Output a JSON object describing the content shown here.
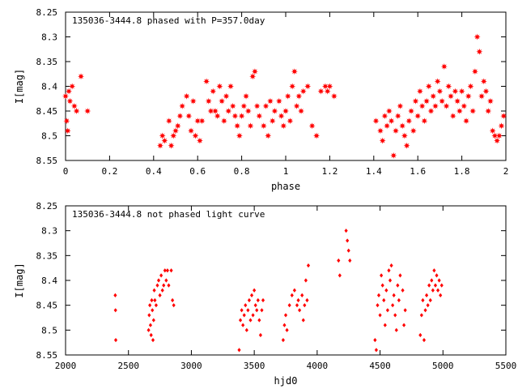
{
  "chart_data": [
    {
      "type": "scatter",
      "title": "135036-3444.8 phased with P=357.0day",
      "xlabel": "phase",
      "ylabel": "I[mag]",
      "xlim": [
        0,
        2
      ],
      "ylim": [
        8.25,
        8.55
      ],
      "y_inverted": true,
      "x_ticks": [
        0,
        0.2,
        0.4,
        0.6,
        0.8,
        1,
        1.2,
        1.4,
        1.6,
        1.8,
        2
      ],
      "y_ticks": [
        8.25,
        8.3,
        8.35,
        8.4,
        8.45,
        8.5,
        8.55
      ],
      "x_tick_labels": [
        "0",
        "0.2",
        "0.4",
        "0.6",
        "0.8",
        "1",
        "1.2",
        "1.4",
        "1.6",
        "1.8",
        "2"
      ],
      "y_tick_labels": [
        "8.25",
        "8.3",
        "8.35",
        "8.4",
        "8.45",
        "8.5",
        "8.55"
      ],
      "grid": false,
      "marker": "filled-star",
      "series": [
        {
          "color": "#ff0000",
          "points": [
            [
              0.0,
              8.42
            ],
            [
              0.005,
              8.47
            ],
            [
              0.01,
              8.49
            ],
            [
              0.015,
              8.41
            ],
            [
              0.02,
              8.43
            ],
            [
              0.03,
              8.4
            ],
            [
              0.04,
              8.44
            ],
            [
              0.05,
              8.45
            ],
            [
              0.07,
              8.38
            ],
            [
              0.1,
              8.45
            ],
            [
              0.43,
              8.52
            ],
            [
              0.44,
              8.5
            ],
            [
              0.45,
              8.51
            ],
            [
              0.47,
              8.47
            ],
            [
              0.48,
              8.52
            ],
            [
              0.49,
              8.5
            ],
            [
              0.5,
              8.49
            ],
            [
              0.51,
              8.48
            ],
            [
              0.52,
              8.46
            ],
            [
              0.53,
              8.44
            ],
            [
              0.55,
              8.42
            ],
            [
              0.56,
              8.46
            ],
            [
              0.57,
              8.49
            ],
            [
              0.58,
              8.43
            ],
            [
              0.59,
              8.5
            ],
            [
              0.6,
              8.47
            ],
            [
              0.61,
              8.51
            ],
            [
              0.62,
              8.47
            ],
            [
              0.64,
              8.39
            ],
            [
              0.65,
              8.43
            ],
            [
              0.66,
              8.45
            ],
            [
              0.67,
              8.41
            ],
            [
              0.68,
              8.45
            ],
            [
              0.69,
              8.46
            ],
            [
              0.7,
              8.4
            ],
            [
              0.71,
              8.43
            ],
            [
              0.72,
              8.47
            ],
            [
              0.73,
              8.42
            ],
            [
              0.74,
              8.45
            ],
            [
              0.75,
              8.4
            ],
            [
              0.76,
              8.44
            ],
            [
              0.77,
              8.46
            ],
            [
              0.78,
              8.48
            ],
            [
              0.79,
              8.5
            ],
            [
              0.8,
              8.46
            ],
            [
              0.81,
              8.44
            ],
            [
              0.82,
              8.42
            ],
            [
              0.83,
              8.45
            ],
            [
              0.84,
              8.48
            ],
            [
              0.85,
              8.38
            ],
            [
              0.86,
              8.37
            ],
            [
              0.87,
              8.44
            ],
            [
              0.88,
              8.46
            ],
            [
              0.9,
              8.48
            ],
            [
              0.91,
              8.44
            ],
            [
              0.92,
              8.5
            ],
            [
              0.93,
              8.43
            ],
            [
              0.94,
              8.47
            ],
            [
              0.95,
              8.45
            ],
            [
              0.97,
              8.43
            ],
            [
              0.98,
              8.46
            ],
            [
              0.99,
              8.48
            ],
            [
              1.0,
              8.45
            ],
            [
              1.01,
              8.42
            ],
            [
              1.02,
              8.47
            ],
            [
              1.03,
              8.4
            ],
            [
              1.04,
              8.37
            ],
            [
              1.05,
              8.44
            ],
            [
              1.06,
              8.42
            ],
            [
              1.07,
              8.45
            ],
            [
              1.08,
              8.41
            ],
            [
              1.1,
              8.4
            ],
            [
              1.12,
              8.48
            ],
            [
              1.14,
              8.5
            ],
            [
              1.16,
              8.41
            ],
            [
              1.18,
              8.4
            ],
            [
              1.19,
              8.41
            ],
            [
              1.2,
              8.4
            ],
            [
              1.22,
              8.42
            ],
            [
              1.41,
              8.47
            ],
            [
              1.43,
              8.49
            ],
            [
              1.44,
              8.51
            ],
            [
              1.45,
              8.46
            ],
            [
              1.46,
              8.48
            ],
            [
              1.47,
              8.45
            ],
            [
              1.48,
              8.47
            ],
            [
              1.49,
              8.54
            ],
            [
              1.5,
              8.49
            ],
            [
              1.51,
              8.46
            ],
            [
              1.52,
              8.44
            ],
            [
              1.53,
              8.48
            ],
            [
              1.54,
              8.5
            ],
            [
              1.55,
              8.52
            ],
            [
              1.56,
              8.47
            ],
            [
              1.57,
              8.45
            ],
            [
              1.58,
              8.49
            ],
            [
              1.59,
              8.43
            ],
            [
              1.6,
              8.46
            ],
            [
              1.61,
              8.41
            ],
            [
              1.62,
              8.44
            ],
            [
              1.63,
              8.47
            ],
            [
              1.64,
              8.43
            ],
            [
              1.65,
              8.4
            ],
            [
              1.66,
              8.45
            ],
            [
              1.67,
              8.42
            ],
            [
              1.68,
              8.44
            ],
            [
              1.69,
              8.39
            ],
            [
              1.7,
              8.41
            ],
            [
              1.71,
              8.43
            ],
            [
              1.72,
              8.36
            ],
            [
              1.73,
              8.44
            ],
            [
              1.74,
              8.4
            ],
            [
              1.75,
              8.42
            ],
            [
              1.76,
              8.46
            ],
            [
              1.77,
              8.41
            ],
            [
              1.78,
              8.43
            ],
            [
              1.79,
              8.45
            ],
            [
              1.8,
              8.41
            ],
            [
              1.81,
              8.44
            ],
            [
              1.82,
              8.47
            ],
            [
              1.83,
              8.42
            ],
            [
              1.84,
              8.4
            ],
            [
              1.85,
              8.45
            ],
            [
              1.86,
              8.37
            ],
            [
              1.87,
              8.3
            ],
            [
              1.88,
              8.33
            ],
            [
              1.89,
              8.42
            ],
            [
              1.9,
              8.39
            ],
            [
              1.91,
              8.41
            ],
            [
              1.92,
              8.45
            ],
            [
              1.93,
              8.43
            ],
            [
              1.94,
              8.49
            ],
            [
              1.95,
              8.5
            ],
            [
              1.96,
              8.51
            ],
            [
              1.97,
              8.5
            ],
            [
              1.98,
              8.48
            ],
            [
              1.99,
              8.46
            ]
          ]
        }
      ]
    },
    {
      "type": "scatter",
      "title": "135036-3444.8 not phased light curve",
      "xlabel": "hjd0",
      "ylabel": "I[mag]",
      "xlim": [
        2000,
        5500
      ],
      "ylim": [
        8.25,
        8.55
      ],
      "y_inverted": true,
      "x_ticks": [
        2000,
        2500,
        3000,
        3500,
        4000,
        4500,
        5000,
        5500
      ],
      "y_ticks": [
        8.25,
        8.3,
        8.35,
        8.4,
        8.45,
        8.5,
        8.55
      ],
      "x_tick_labels": [
        "2000",
        "2500",
        "3000",
        "3500",
        "4000",
        "4500",
        "5000",
        "5500"
      ],
      "y_tick_labels": [
        "8.25",
        "8.3",
        "8.35",
        "8.4",
        "8.45",
        "8.5",
        "8.55"
      ],
      "grid": false,
      "marker": "filled-diamond",
      "series": [
        {
          "color": "#ff0000",
          "points": [
            [
              2395,
              8.43
            ],
            [
              2397,
              8.46
            ],
            [
              2399,
              8.52
            ],
            [
              2660,
              8.5
            ],
            [
              2665,
              8.47
            ],
            [
              2670,
              8.45
            ],
            [
              2675,
              8.49
            ],
            [
              2680,
              8.51
            ],
            [
              2685,
              8.44
            ],
            [
              2690,
              8.46
            ],
            [
              2695,
              8.52
            ],
            [
              2700,
              8.48
            ],
            [
              2705,
              8.42
            ],
            [
              2710,
              8.44
            ],
            [
              2720,
              8.45
            ],
            [
              2730,
              8.41
            ],
            [
              2740,
              8.4
            ],
            [
              2750,
              8.43
            ],
            [
              2760,
              8.39
            ],
            [
              2770,
              8.42
            ],
            [
              2780,
              8.41
            ],
            [
              2790,
              8.38
            ],
            [
              2800,
              8.4
            ],
            [
              2810,
              8.38
            ],
            [
              2820,
              8.41
            ],
            [
              2840,
              8.38
            ],
            [
              2850,
              8.44
            ],
            [
              2860,
              8.45
            ],
            [
              3380,
              8.54
            ],
            [
              3390,
              8.48
            ],
            [
              3400,
              8.46
            ],
            [
              3410,
              8.49
            ],
            [
              3420,
              8.47
            ],
            [
              3430,
              8.45
            ],
            [
              3440,
              8.5
            ],
            [
              3450,
              8.46
            ],
            [
              3460,
              8.44
            ],
            [
              3470,
              8.48
            ],
            [
              3480,
              8.43
            ],
            [
              3490,
              8.47
            ],
            [
              3500,
              8.42
            ],
            [
              3510,
              8.45
            ],
            [
              3520,
              8.46
            ],
            [
              3530,
              8.44
            ],
            [
              3540,
              8.48
            ],
            [
              3550,
              8.51
            ],
            [
              3560,
              8.46
            ],
            [
              3570,
              8.44
            ],
            [
              3730,
              8.52
            ],
            [
              3740,
              8.49
            ],
            [
              3750,
              8.47
            ],
            [
              3760,
              8.5
            ],
            [
              3780,
              8.45
            ],
            [
              3800,
              8.43
            ],
            [
              3820,
              8.42
            ],
            [
              3840,
              8.45
            ],
            [
              3850,
              8.44
            ],
            [
              3860,
              8.46
            ],
            [
              3880,
              8.43
            ],
            [
              3890,
              8.48
            ],
            [
              3900,
              8.45
            ],
            [
              3910,
              8.4
            ],
            [
              3920,
              8.44
            ],
            [
              3930,
              8.37
            ],
            [
              4170,
              8.36
            ],
            [
              4180,
              8.39
            ],
            [
              4230,
              8.3
            ],
            [
              4240,
              8.32
            ],
            [
              4250,
              8.34
            ],
            [
              4260,
              8.36
            ],
            [
              4460,
              8.52
            ],
            [
              4470,
              8.54
            ],
            [
              4480,
              8.45
            ],
            [
              4490,
              8.43
            ],
            [
              4500,
              8.47
            ],
            [
              4510,
              8.39
            ],
            [
              4520,
              8.41
            ],
            [
              4530,
              8.44
            ],
            [
              4540,
              8.49
            ],
            [
              4550,
              8.42
            ],
            [
              4560,
              8.46
            ],
            [
              4570,
              8.38
            ],
            [
              4580,
              8.4
            ],
            [
              4590,
              8.37
            ],
            [
              4600,
              8.45
            ],
            [
              4610,
              8.43
            ],
            [
              4620,
              8.47
            ],
            [
              4630,
              8.5
            ],
            [
              4640,
              8.41
            ],
            [
              4650,
              8.44
            ],
            [
              4660,
              8.39
            ],
            [
              4680,
              8.42
            ],
            [
              4690,
              8.49
            ],
            [
              4700,
              8.46
            ],
            [
              4820,
              8.51
            ],
            [
              4830,
              8.47
            ],
            [
              4840,
              8.44
            ],
            [
              4850,
              8.52
            ],
            [
              4860,
              8.46
            ],
            [
              4870,
              8.43
            ],
            [
              4880,
              8.45
            ],
            [
              4890,
              8.41
            ],
            [
              4900,
              8.44
            ],
            [
              4910,
              8.4
            ],
            [
              4920,
              8.42
            ],
            [
              4930,
              8.38
            ],
            [
              4940,
              8.41
            ],
            [
              4950,
              8.39
            ],
            [
              4960,
              8.42
            ],
            [
              4970,
              8.4
            ],
            [
              4980,
              8.43
            ],
            [
              4990,
              8.41
            ]
          ]
        }
      ]
    }
  ]
}
